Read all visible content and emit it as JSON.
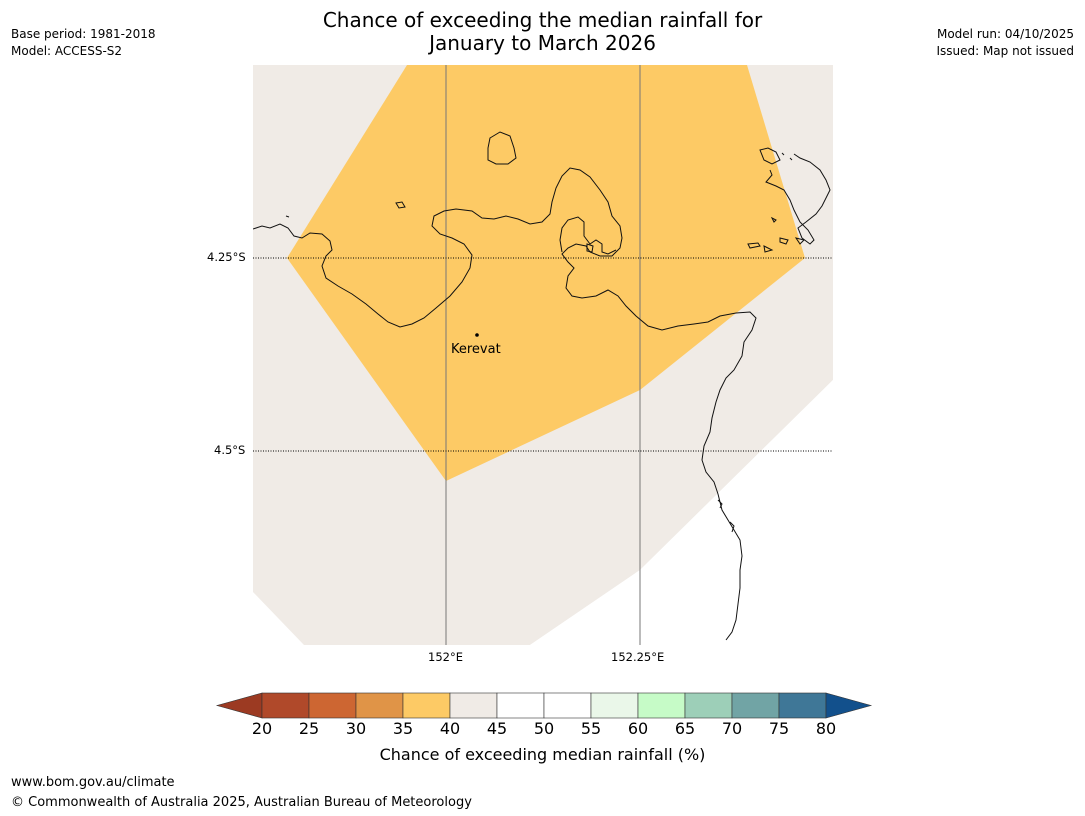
{
  "header": {
    "title_line1": "Chance of exceeding the median rainfall for",
    "title_line2": "January to March 2026",
    "base_period": "Base period: 1981-2018",
    "model": "Model: ACCESS-S2",
    "model_run": "Model run: 04/10/2025",
    "issued": "Issued: Map not issued"
  },
  "map": {
    "lat_labels": [
      "4.25°S",
      "4.5°S"
    ],
    "lon_labels": [
      "152°E",
      "152.25°E"
    ],
    "place": {
      "name": "Kerevat"
    },
    "colors": {
      "band_35_40": "#fdca65",
      "band_40_45": "#f0ebe6",
      "band_45_55": "#ffffff"
    }
  },
  "colorbar": {
    "ticks": [
      "20",
      "25",
      "30",
      "35",
      "40",
      "45",
      "50",
      "55",
      "60",
      "65",
      "70",
      "75",
      "80"
    ],
    "colors": [
      "#9c3a22",
      "#b0492a",
      "#cd6632",
      "#e09447",
      "#fdca65",
      "#f0ebe6",
      "#ffffff",
      "#ffffff",
      "#eaf7e9",
      "#c6fbc7",
      "#9dcfb8",
      "#71a4a5",
      "#3f7797",
      "#12508c"
    ],
    "label": "Chance of exceeding median rainfall (%)"
  },
  "footer": {
    "url": "www.bom.gov.au/climate",
    "copyright": "© Commonwealth of Australia 2025, Australian Bureau of Meteorology"
  }
}
